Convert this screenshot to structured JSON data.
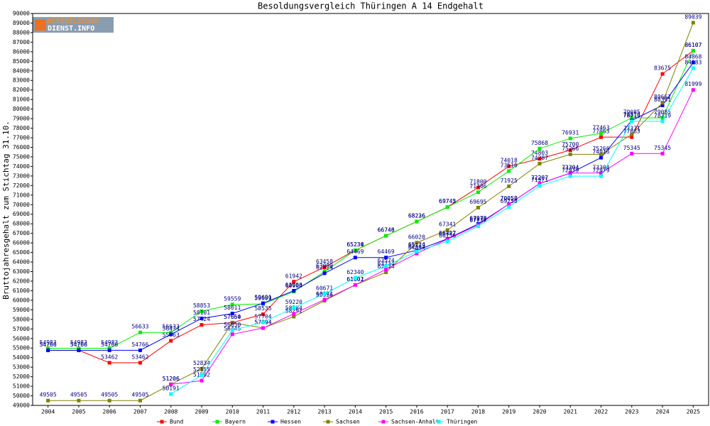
{
  "logo": {
    "line1": "ÖFFENTLICHER",
    "line2": "DIENST.INFO"
  },
  "chart_data": {
    "type": "line",
    "title": "Besoldungsvergleich Thüringen A 14 Endgehalt",
    "y_label": "Bruttojahresgehalt zum Stichtag 31.10.",
    "categories": [
      "2004",
      "2005",
      "2006",
      "2007",
      "2008",
      "2009",
      "2010",
      "2011",
      "2012",
      "2013",
      "2014",
      "2015",
      "2016",
      "2017",
      "2018",
      "2019",
      "2020",
      "2021",
      "2022",
      "2023",
      "2024",
      "2025"
    ],
    "ylim": [
      49000,
      90000
    ],
    "yticks": [
      49000,
      50000,
      51000,
      52000,
      53000,
      54000,
      55000,
      56000,
      57000,
      58000,
      59000,
      60000,
      61000,
      62000,
      63000,
      64000,
      65000,
      66000,
      67000,
      68000,
      69000,
      70000,
      71000,
      72000,
      73000,
      74000,
      75000,
      76000,
      77000,
      78000,
      79000,
      80000,
      81000,
      82000,
      83000,
      84000,
      85000,
      86000,
      87000,
      88000,
      89000,
      90000
    ],
    "grid": false,
    "legend": "bottom",
    "series": [
      {
        "name": "Bund",
        "color": "#ff0000",
        "values": [
          54766,
          54766,
          53462,
          53462,
          55763,
          57424,
          57664,
          58535,
          61942,
          63458,
          65230,
          66746,
          68236,
          69745,
          71800,
          74018,
          74803,
          75700,
          77063,
          77063,
          83675,
          86107
        ]
      },
      {
        "name": "Bayern",
        "color": "#00ee00",
        "values": [
          54983,
          54983,
          54983,
          56633,
          56633,
          58853,
          59559,
          59609,
          60904,
          63000,
          65234,
          66748,
          68226,
          69742,
          71306,
          73516,
          75868,
          76931,
          77463,
          79085,
          79085,
          86107
        ]
      },
      {
        "name": "Hessen",
        "color": "#0000ff",
        "values": [
          54766,
          54766,
          54766,
          54766,
          56434,
          58101,
          58611,
          59691,
          61000,
          62824,
          64469,
          64469,
          65224,
          66427,
          67978,
          70058,
          72207,
          73304,
          74916,
          78813,
          80391,
          84868
        ]
      },
      {
        "name": "Sachsen",
        "color": "#808000",
        "values": [
          49505,
          49505,
          49505,
          49505,
          51206,
          52834,
          57650,
          57094,
          58291,
          59956,
          61602,
          62924,
          66020,
          67341,
          69695,
          71925,
          74287,
          75266,
          75266,
          77371,
          80662,
          89039
        ]
      },
      {
        "name": "Sachsen-Anhalt",
        "color": "#ff00ff",
        "values": [
          null,
          null,
          null,
          null,
          51206,
          51592,
          56445,
          57094,
          58584,
          60071,
          61601,
          63234,
          64894,
          66387,
          67870,
          70058,
          72207,
          73304,
          73304,
          75345,
          75345,
          81999
        ]
      },
      {
        "name": "Thüringen",
        "color": "#00ffff",
        "values": [
          null,
          null,
          null,
          null,
          50191,
          52155,
          56850,
          57704,
          59220,
          60671,
          62340,
          63574,
          65113,
          66156,
          67737,
          69758,
          71971,
          72979,
          72979,
          78719,
          78719,
          84283
        ]
      }
    ]
  }
}
